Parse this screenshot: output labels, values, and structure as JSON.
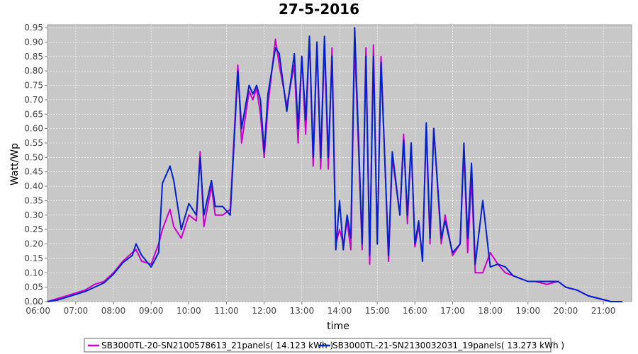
{
  "chart_data": {
    "type": "line",
    "title": "27-5-2016",
    "xlabel": "time",
    "ylabel": "Watt/Wp",
    "xlim": [
      6.25,
      21.75
    ],
    "ylim": [
      0,
      0.96
    ],
    "grid": true,
    "legend_position": "bottom",
    "x_ticks": [
      "06:00",
      "07:00",
      "08:00",
      "09:00",
      "10:00",
      "11:00",
      "12:00",
      "13:00",
      "14:00",
      "15:00",
      "16:00",
      "17:00",
      "18:00",
      "19:00",
      "20:00",
      "21:00"
    ],
    "y_ticks": [
      "0.00",
      "0.05",
      "0.10",
      "0.15",
      "0.20",
      "0.25",
      "0.30",
      "0.35",
      "0.40",
      "0.45",
      "0.50",
      "0.55",
      "0.60",
      "0.65",
      "0.70",
      "0.75",
      "0.80",
      "0.85",
      "0.90",
      "0.95"
    ],
    "series": [
      {
        "name": "SB3000TL-20-SN2100578613_21panels( 14.123 kWh )",
        "color": "#cc00cc",
        "x": [
          6.25,
          6.5,
          6.75,
          7.0,
          7.25,
          7.5,
          7.75,
          8.0,
          8.25,
          8.5,
          8.6,
          8.75,
          9.0,
          9.2,
          9.3,
          9.5,
          9.6,
          9.8,
          10.0,
          10.2,
          10.3,
          10.4,
          10.6,
          10.7,
          10.9,
          11.1,
          11.3,
          11.4,
          11.6,
          11.7,
          11.8,
          11.9,
          12.0,
          12.1,
          12.3,
          12.4,
          12.6,
          12.8,
          12.9,
          13.0,
          13.1,
          13.2,
          13.3,
          13.4,
          13.5,
          13.6,
          13.7,
          13.8,
          13.9,
          14.0,
          14.1,
          14.2,
          14.3,
          14.4,
          14.6,
          14.7,
          14.8,
          14.9,
          15.0,
          15.1,
          15.3,
          15.4,
          15.6,
          15.7,
          15.8,
          15.9,
          16.0,
          16.1,
          16.2,
          16.3,
          16.4,
          16.5,
          16.7,
          16.8,
          17.0,
          17.2,
          17.3,
          17.4,
          17.5,
          17.6,
          17.8,
          18.0,
          18.2,
          18.4,
          18.6,
          18.8,
          19.0,
          19.2,
          19.5,
          19.8,
          20.0,
          20.3,
          20.6,
          20.9,
          21.2,
          21.5
        ],
        "y": [
          0.0,
          0.01,
          0.02,
          0.03,
          0.04,
          0.06,
          0.07,
          0.1,
          0.14,
          0.17,
          0.18,
          0.14,
          0.13,
          0.2,
          0.25,
          0.32,
          0.26,
          0.22,
          0.3,
          0.28,
          0.52,
          0.26,
          0.4,
          0.3,
          0.3,
          0.32,
          0.82,
          0.55,
          0.73,
          0.7,
          0.74,
          0.65,
          0.5,
          0.68,
          0.91,
          0.82,
          0.68,
          0.82,
          0.55,
          0.85,
          0.58,
          0.92,
          0.47,
          0.89,
          0.46,
          0.9,
          0.46,
          0.88,
          0.2,
          0.25,
          0.2,
          0.28,
          0.18,
          0.9,
          0.18,
          0.88,
          0.13,
          0.89,
          0.2,
          0.85,
          0.14,
          0.5,
          0.3,
          0.58,
          0.27,
          0.55,
          0.19,
          0.26,
          0.16,
          0.6,
          0.2,
          0.6,
          0.2,
          0.3,
          0.16,
          0.2,
          0.53,
          0.17,
          0.43,
          0.1,
          0.1,
          0.17,
          0.13,
          0.1,
          0.09,
          0.08,
          0.07,
          0.07,
          0.06,
          0.07,
          0.05,
          0.04,
          0.02,
          0.01,
          0.0,
          0.0
        ]
      },
      {
        "name": "SB3000TL-21-SN2130032031_19panels( 13.273 kWh )",
        "color": "#0022cc",
        "x": [
          6.25,
          6.5,
          6.75,
          7.0,
          7.25,
          7.5,
          7.75,
          8.0,
          8.25,
          8.5,
          8.6,
          8.75,
          9.0,
          9.2,
          9.3,
          9.5,
          9.6,
          9.8,
          10.0,
          10.2,
          10.3,
          10.4,
          10.6,
          10.7,
          10.9,
          11.1,
          11.3,
          11.4,
          11.6,
          11.7,
          11.8,
          11.9,
          12.0,
          12.1,
          12.3,
          12.4,
          12.6,
          12.8,
          12.9,
          13.0,
          13.1,
          13.2,
          13.3,
          13.4,
          13.5,
          13.6,
          13.7,
          13.8,
          13.9,
          14.0,
          14.1,
          14.2,
          14.3,
          14.4,
          14.6,
          14.7,
          14.8,
          14.9,
          15.0,
          15.1,
          15.3,
          15.4,
          15.6,
          15.7,
          15.8,
          15.9,
          16.0,
          16.1,
          16.2,
          16.3,
          16.4,
          16.5,
          16.7,
          16.8,
          17.0,
          17.2,
          17.3,
          17.4,
          17.5,
          17.6,
          17.8,
          18.0,
          18.2,
          18.4,
          18.6,
          18.8,
          19.0,
          19.2,
          19.5,
          19.8,
          20.0,
          20.3,
          20.6,
          20.9,
          21.2,
          21.5
        ],
        "y": [
          0.0,
          0.005,
          0.015,
          0.025,
          0.035,
          0.05,
          0.065,
          0.095,
          0.135,
          0.16,
          0.2,
          0.16,
          0.12,
          0.17,
          0.41,
          0.47,
          0.42,
          0.25,
          0.34,
          0.3,
          0.5,
          0.3,
          0.42,
          0.33,
          0.33,
          0.3,
          0.8,
          0.6,
          0.75,
          0.72,
          0.75,
          0.7,
          0.52,
          0.72,
          0.88,
          0.86,
          0.66,
          0.86,
          0.6,
          0.85,
          0.63,
          0.92,
          0.5,
          0.9,
          0.5,
          0.92,
          0.5,
          0.85,
          0.18,
          0.35,
          0.18,
          0.3,
          0.22,
          0.95,
          0.2,
          0.85,
          0.16,
          0.85,
          0.2,
          0.83,
          0.16,
          0.52,
          0.3,
          0.56,
          0.3,
          0.55,
          0.2,
          0.28,
          0.14,
          0.62,
          0.22,
          0.6,
          0.22,
          0.28,
          0.17,
          0.2,
          0.55,
          0.22,
          0.48,
          0.13,
          0.35,
          0.12,
          0.13,
          0.12,
          0.09,
          0.08,
          0.07,
          0.07,
          0.07,
          0.07,
          0.05,
          0.04,
          0.02,
          0.01,
          0.0,
          0.0
        ]
      }
    ]
  }
}
